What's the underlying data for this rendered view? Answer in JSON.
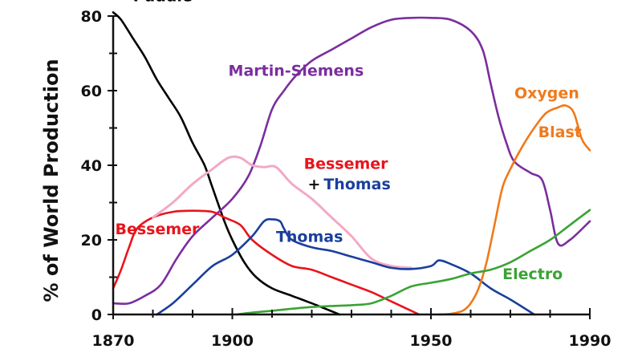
{
  "chart_data": {
    "type": "line",
    "title": "",
    "xlabel": "",
    "ylabel": "% of World Production",
    "xlim": [
      1870,
      1990
    ],
    "ylim": [
      0,
      80
    ],
    "x_ticks": [
      1870,
      1900,
      1950,
      1990
    ],
    "y_ticks": [
      0,
      20,
      40,
      60,
      80
    ],
    "grid": false,
    "legend": "inline labels",
    "series": [
      {
        "name": "Puddle",
        "color": "#000000",
        "x": [
          1870,
          1872,
          1875,
          1878,
          1881,
          1884,
          1887,
          1890,
          1893,
          1895,
          1898,
          1900,
          1903,
          1906,
          1910,
          1915,
          1920,
          1927
        ],
        "y": [
          81,
          79,
          74,
          69,
          63,
          58,
          53,
          46,
          40,
          34,
          25,
          20,
          14,
          10,
          7,
          5,
          3,
          0
        ]
      },
      {
        "name": "Martin-Siemens",
        "color": "#7a2e9e",
        "x": [
          1870,
          1874,
          1878,
          1882,
          1886,
          1890,
          1895,
          1900,
          1904,
          1907,
          1910,
          1913,
          1916,
          1920,
          1925,
          1930,
          1935,
          1940,
          1945,
          1950,
          1955,
          1960,
          1963,
          1965,
          1967,
          1969,
          1971,
          1975,
          1978,
          1980,
          1982,
          1985,
          1990
        ],
        "y": [
          3,
          3,
          5,
          8,
          15,
          21,
          26,
          31,
          37,
          45,
          55,
          60,
          64,
          68,
          71,
          74,
          77,
          79,
          79.5,
          79.5,
          79,
          76,
          71,
          62,
          53,
          46,
          41,
          38,
          36,
          28,
          19,
          20,
          25
        ]
      },
      {
        "name": "Bessemer",
        "color": "#e8141c",
        "x": [
          1870,
          1872,
          1874,
          1876,
          1880,
          1885,
          1890,
          1895,
          1898,
          1902,
          1905,
          1910,
          1915,
          1920,
          1925,
          1930,
          1935,
          1940,
          1947
        ],
        "y": [
          7,
          12,
          18,
          23,
          26,
          27.5,
          27.8,
          27.5,
          26,
          24,
          20,
          16,
          13,
          12,
          10,
          8,
          6,
          3.5,
          0
        ]
      },
      {
        "name": "Bessemer + Thomas",
        "color": "#f2a9c7",
        "x": [
          1880,
          1885,
          1890,
          1895,
          1899,
          1902,
          1905,
          1908,
          1911,
          1915,
          1920,
          1925,
          1930,
          1935,
          1940,
          1945
        ],
        "y": [
          26,
          30,
          35,
          39,
          42,
          42,
          40,
          39.5,
          39.5,
          35,
          31,
          26,
          21,
          15,
          13,
          12.5
        ]
      },
      {
        "name": "Thomas",
        "color": "#1a3f9c",
        "x": [
          1881,
          1885,
          1890,
          1895,
          1900,
          1905,
          1908,
          1910,
          1912,
          1913,
          1915,
          1920,
          1925,
          1930,
          1935,
          1940,
          1945,
          1950,
          1952,
          1955,
          1960,
          1965,
          1970,
          1976
        ],
        "y": [
          0,
          3,
          8,
          13,
          16,
          21,
          25,
          25.5,
          25,
          23,
          20,
          18,
          17,
          15.5,
          14,
          12.5,
          12.2,
          13,
          14.5,
          13.5,
          11,
          7,
          4,
          0
        ]
      },
      {
        "name": "Oxygen Blast",
        "color": "#f07a1a",
        "x": [
          1952,
          1955,
          1958,
          1960,
          1962,
          1964,
          1966,
          1968,
          1970,
          1973,
          1976,
          1979,
          1982,
          1984,
          1986,
          1988,
          1990
        ],
        "y": [
          0,
          0.2,
          1,
          3,
          7,
          14,
          24,
          34,
          39,
          45,
          50,
          54,
          55.5,
          56,
          54,
          47,
          44
        ]
      },
      {
        "name": "Electro",
        "color": "#3aa335",
        "x": [
          1901,
          1905,
          1910,
          1920,
          1930,
          1935,
          1940,
          1945,
          1950,
          1955,
          1960,
          1965,
          1970,
          1975,
          1980,
          1985,
          1990
        ],
        "y": [
          0,
          0.5,
          1,
          2,
          2.5,
          3,
          5,
          7.5,
          8.5,
          9.5,
          11,
          12,
          14,
          17,
          20,
          24,
          28
        ]
      }
    ],
    "labels": [
      {
        "text": "Puddle",
        "color": "#000000",
        "x": 1875,
        "y": 84
      },
      {
        "text": "Martin-Siemens",
        "color": "#7a2e9e",
        "x": 1899,
        "y": 64
      },
      {
        "text": "Oxygen",
        "color": "#f07a1a",
        "x": 1971,
        "y": 58
      },
      {
        "text": "Blast",
        "color": "#f07a1a",
        "x": 1977,
        "y": 47.5
      },
      {
        "text": "Bessemer",
        "color": "#e8141c",
        "x": 1918,
        "y": 39
      },
      {
        "text": "+",
        "color": "#111111",
        "x": 1919,
        "y": 33.5
      },
      {
        "text": "Thomas",
        "color": "#1a3f9c",
        "x": 1923,
        "y": 33.5
      },
      {
        "text": "Bessemer",
        "color": "#e8141c",
        "x": 1870.5,
        "y": 21.5
      },
      {
        "text": "Thomas",
        "color": "#1a3f9c",
        "x": 1911,
        "y": 19.5
      },
      {
        "text": "Electro",
        "color": "#3aa335",
        "x": 1968,
        "y": 9.5
      }
    ]
  }
}
